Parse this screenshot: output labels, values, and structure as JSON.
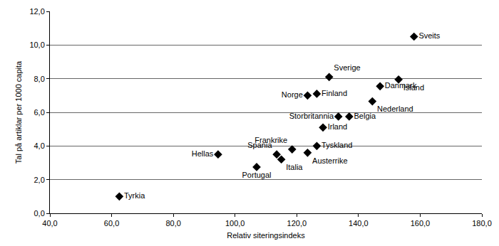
{
  "chart_data": {
    "type": "scatter",
    "x_label": "Relativ siteringsindeks",
    "y_label": "Tal på artiklar per 1000 capita",
    "labels": [
      "Tyrkia",
      "Hellas",
      "Portugal",
      "Spania",
      "Italia",
      "Frankrike",
      "Austerrike",
      "Tyskland",
      "Irland",
      "Norge",
      "Finland",
      "Sverige",
      "Storbritannia",
      "Belgia",
      "Nederland",
      "Danmark",
      "Island",
      "Sveits"
    ],
    "x": [
      62.5,
      94.5,
      107,
      113.5,
      115,
      118.5,
      123.5,
      126.5,
      128.5,
      123.5,
      126.5,
      130.5,
      133.5,
      137,
      144.5,
      147,
      153,
      158
    ],
    "values": [
      1.0,
      3.5,
      2.75,
      3.5,
      3.2,
      3.8,
      3.6,
      4.0,
      5.1,
      7.0,
      7.1,
      8.1,
      5.75,
      5.75,
      6.65,
      7.55,
      7.95,
      10.5
    ],
    "color": "#000000",
    "marker": "diamond",
    "xlim": [
      40,
      180
    ],
    "xticks": [
      {
        "value": 40,
        "label": "40,0"
      },
      {
        "value": 60,
        "label": "60,0"
      },
      {
        "value": 80,
        "label": "80,0"
      },
      {
        "value": 100,
        "label": "100,0"
      },
      {
        "value": 120,
        "label": "120,0"
      },
      {
        "value": 140,
        "label": "140,0"
      },
      {
        "value": 160,
        "label": "160,0"
      },
      {
        "value": 180,
        "label": "180,0"
      }
    ],
    "ylim": [
      0,
      12
    ],
    "yticks": [
      {
        "value": 0,
        "label": "0,0"
      },
      {
        "value": 2,
        "label": "2,0"
      },
      {
        "value": 4,
        "label": "4,0"
      },
      {
        "value": 6,
        "label": "6,0"
      },
      {
        "value": 8,
        "label": "8,0"
      },
      {
        "value": 10,
        "label": "10,0"
      },
      {
        "value": 12,
        "label": "12,0"
      }
    ],
    "grid": true
  }
}
